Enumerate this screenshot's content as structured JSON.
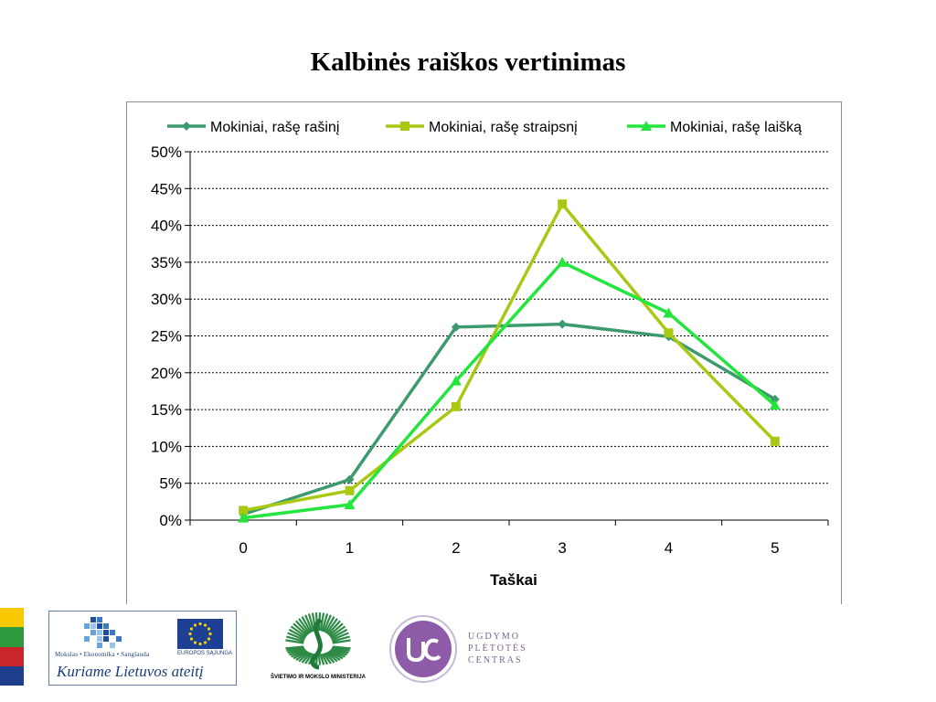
{
  "slide": {
    "title": "Kalbinės raiškos vertinimas"
  },
  "chart_data": {
    "type": "line",
    "title": "",
    "xlabel": "Taškai",
    "ylabel": "",
    "categories": [
      "0",
      "1",
      "2",
      "3",
      "4",
      "5"
    ],
    "ylim": [
      0,
      50
    ],
    "yticks": [
      "0%",
      "5%",
      "10%",
      "15%",
      "20%",
      "25%",
      "30%",
      "35%",
      "40%",
      "45%",
      "50%"
    ],
    "grid": "horizontal-dashed",
    "legend_position": "top",
    "series": [
      {
        "name": "Mokiniai, rašę rašinį",
        "marker": "diamond",
        "color": "#3d9a6e",
        "values": [
          0.8,
          5.5,
          26.2,
          26.6,
          24.9,
          16.4
        ]
      },
      {
        "name": "Mokiniai, rašę straipsnį",
        "marker": "square",
        "color": "#a8c814",
        "values": [
          1.3,
          4.0,
          15.4,
          42.9,
          25.4,
          10.7
        ]
      },
      {
        "name": "Mokiniai, rašę laišką",
        "marker": "triangle",
        "color": "#22e63c",
        "values": [
          0.3,
          2.1,
          18.9,
          35.0,
          28.1,
          15.6
        ]
      }
    ]
  },
  "footer": {
    "mes_small_text": "Mokslas • Ekonomika • Sanglauda",
    "eu_text": "EUROPOS SĄJUNGA",
    "mes_slogan": "Kuriame Lietuvos ateitį",
    "ministry_text": "ŠVIETIMO IR MOKSLO MINISTERIJA",
    "upc_line1": "UGDYMO",
    "upc_line2": "PLĖTOTĖS",
    "upc_line3": "CENTRAS",
    "flag_colors": [
      "#f9c900",
      "#2e9a3e",
      "#c9252c",
      "#1f3f8c"
    ]
  }
}
